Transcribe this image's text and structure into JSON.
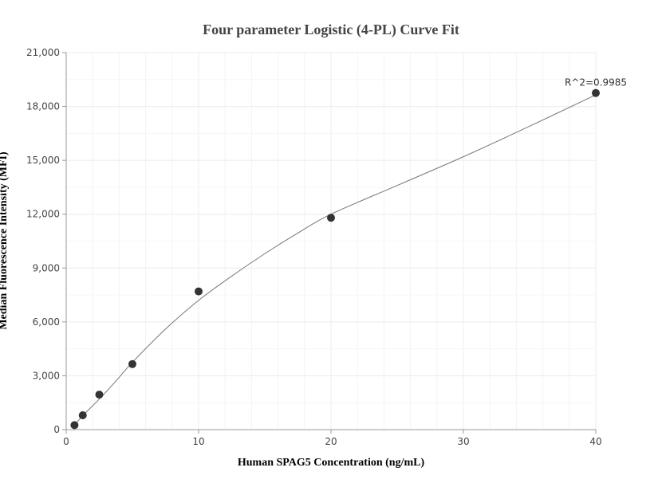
{
  "chart_data": {
    "type": "scatter",
    "title": "Four parameter Logistic (4-PL) Curve Fit",
    "xlabel": "Human SPAG5 Concentration (ng/mL)",
    "ylabel": "Median Fluorescence Intensity (MFI)",
    "xlim": [
      0,
      40
    ],
    "ylim": [
      0,
      21000
    ],
    "x_ticks": [
      0,
      10,
      20,
      30,
      40
    ],
    "x_tick_labels": [
      "0",
      "10",
      "20",
      "30",
      "40"
    ],
    "y_ticks": [
      0,
      3000,
      6000,
      9000,
      12000,
      15000,
      18000,
      21000
    ],
    "y_tick_labels": [
      "0",
      "3,000",
      "6,000",
      "9,000",
      "12,000",
      "15,000",
      "18,000",
      "21,000"
    ],
    "grid": true,
    "points": [
      {
        "x": 0.625,
        "y": 250
      },
      {
        "x": 1.25,
        "y": 800
      },
      {
        "x": 2.5,
        "y": 1950
      },
      {
        "x": 5,
        "y": 3650
      },
      {
        "x": 10,
        "y": 7700
      },
      {
        "x": 20,
        "y": 11800
      },
      {
        "x": 40,
        "y": 18750
      }
    ],
    "fit_curve": [
      {
        "x": 0.625,
        "y": 250
      },
      {
        "x": 1.25,
        "y": 780
      },
      {
        "x": 2.5,
        "y": 1700
      },
      {
        "x": 3.75,
        "y": 2700
      },
      {
        "x": 5,
        "y": 3750
      },
      {
        "x": 7.5,
        "y": 5600
      },
      {
        "x": 10,
        "y": 7200
      },
      {
        "x": 12.5,
        "y": 8550
      },
      {
        "x": 15,
        "y": 9800
      },
      {
        "x": 17.5,
        "y": 10950
      },
      {
        "x": 20,
        "y": 12000
      },
      {
        "x": 25,
        "y": 13600
      },
      {
        "x": 30,
        "y": 15200
      },
      {
        "x": 35,
        "y": 16900
      },
      {
        "x": 40,
        "y": 18650
      }
    ],
    "annotation": {
      "text": "R^2=0.9985",
      "x": 40,
      "y": 18750
    },
    "colors": {
      "marker": "#333333",
      "curve": "#777777",
      "grid": "#e8ecf2",
      "axis": "#999999"
    }
  }
}
